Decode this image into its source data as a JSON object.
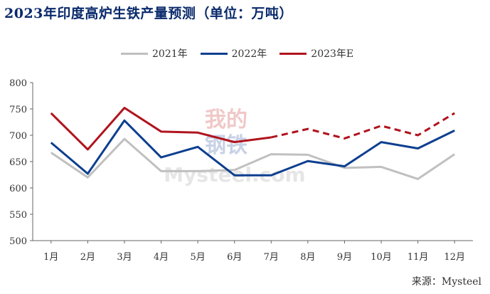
{
  "title": "2023年印度高炉生铁产量预测（单位：万吨）",
  "source": "来源：Mysteel",
  "watermark": {
    "top": "我的",
    "bottom": "钢铁",
    "brand": "Mysteel",
    "brand_suffix": ".com"
  },
  "chart_data": {
    "type": "line",
    "categories": [
      "1月",
      "2月",
      "3月",
      "4月",
      "5月",
      "6月",
      "7月",
      "8月",
      "9月",
      "10月",
      "11月",
      "12月"
    ],
    "ylim": [
      500,
      800
    ],
    "yticks": [
      500,
      550,
      600,
      650,
      700,
      750,
      800
    ],
    "grid": false,
    "legend_position": "top",
    "xlabel": "",
    "ylabel": "",
    "series": [
      {
        "name": "2021年",
        "color": "#c0c0c0",
        "dashed_from_index": null,
        "values": [
          667,
          620,
          693,
          632,
          632,
          634,
          664,
          663,
          638,
          640,
          617,
          664
        ]
      },
      {
        "name": "2022年",
        "color": "#0d3f8f",
        "dashed_from_index": null,
        "values": [
          686,
          627,
          728,
          658,
          678,
          624,
          624,
          651,
          641,
          687,
          675,
          709
        ]
      },
      {
        "name": "2023年E",
        "color": "#b0141e",
        "dashed_from_index": 6,
        "values": [
          742,
          673,
          752,
          707,
          705,
          687,
          696,
          712,
          694,
          718,
          700,
          742
        ]
      }
    ]
  }
}
